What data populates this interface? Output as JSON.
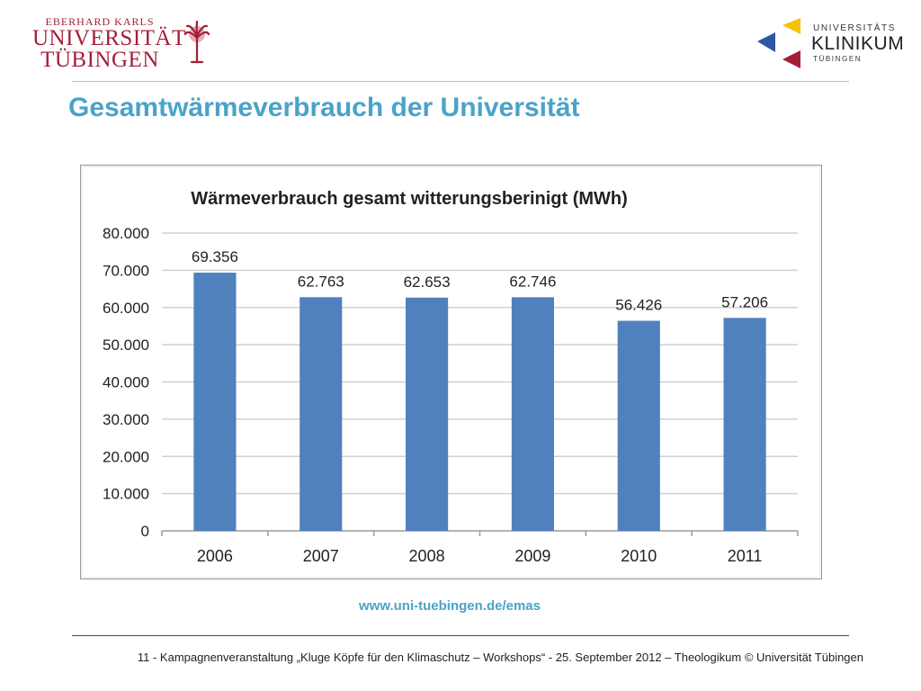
{
  "header": {
    "university_logo": {
      "line1": "EBERHARD KARLS",
      "line2": "UNIVERSITÄT",
      "line3": "TÜBINGEN",
      "color": "#a51e36"
    },
    "clinic_logo": {
      "line1": "UNIVERSITÄTS",
      "line2": "KLINIKUM",
      "line3": "TÜBINGEN",
      "colors": [
        "#f5c400",
        "#2b57a5",
        "#a51e36"
      ]
    }
  },
  "slide": {
    "title": "Gesamtwärmeverbrauch der Universität",
    "source_url": "www.uni-tuebingen.de/emas"
  },
  "footer": {
    "text": "11 -  Kampagnenveranstaltung „Kluge Köpfe für den Klimaschutz – Workshops“ - 25. September 2012 – Theologikum © Universität Tübingen"
  },
  "colors": {
    "title": "#4aa3c9",
    "bar": "#4f81bd",
    "header_rule": "#c8c08f",
    "footer_rule": "#a51e36"
  },
  "chart_data": {
    "type": "bar",
    "title": "Wärmeverbrauch gesamt witterungsberinigt (MWh)",
    "categories": [
      "2006",
      "2007",
      "2008",
      "2009",
      "2010",
      "2011"
    ],
    "values": [
      69356,
      62763,
      62653,
      62746,
      56426,
      57206
    ],
    "data_labels": [
      "69.356",
      "62.763",
      "62.653",
      "62.746",
      "56.426",
      "57.206"
    ],
    "y_ticks": [
      0,
      10000,
      20000,
      30000,
      40000,
      50000,
      60000,
      70000,
      80000
    ],
    "y_tick_labels": [
      "0",
      "10.000",
      "20.000",
      "30.000",
      "40.000",
      "50.000",
      "60.000",
      "70.000",
      "80.000"
    ],
    "ylim": [
      0,
      80000
    ],
    "grid": true,
    "legend": "none"
  }
}
